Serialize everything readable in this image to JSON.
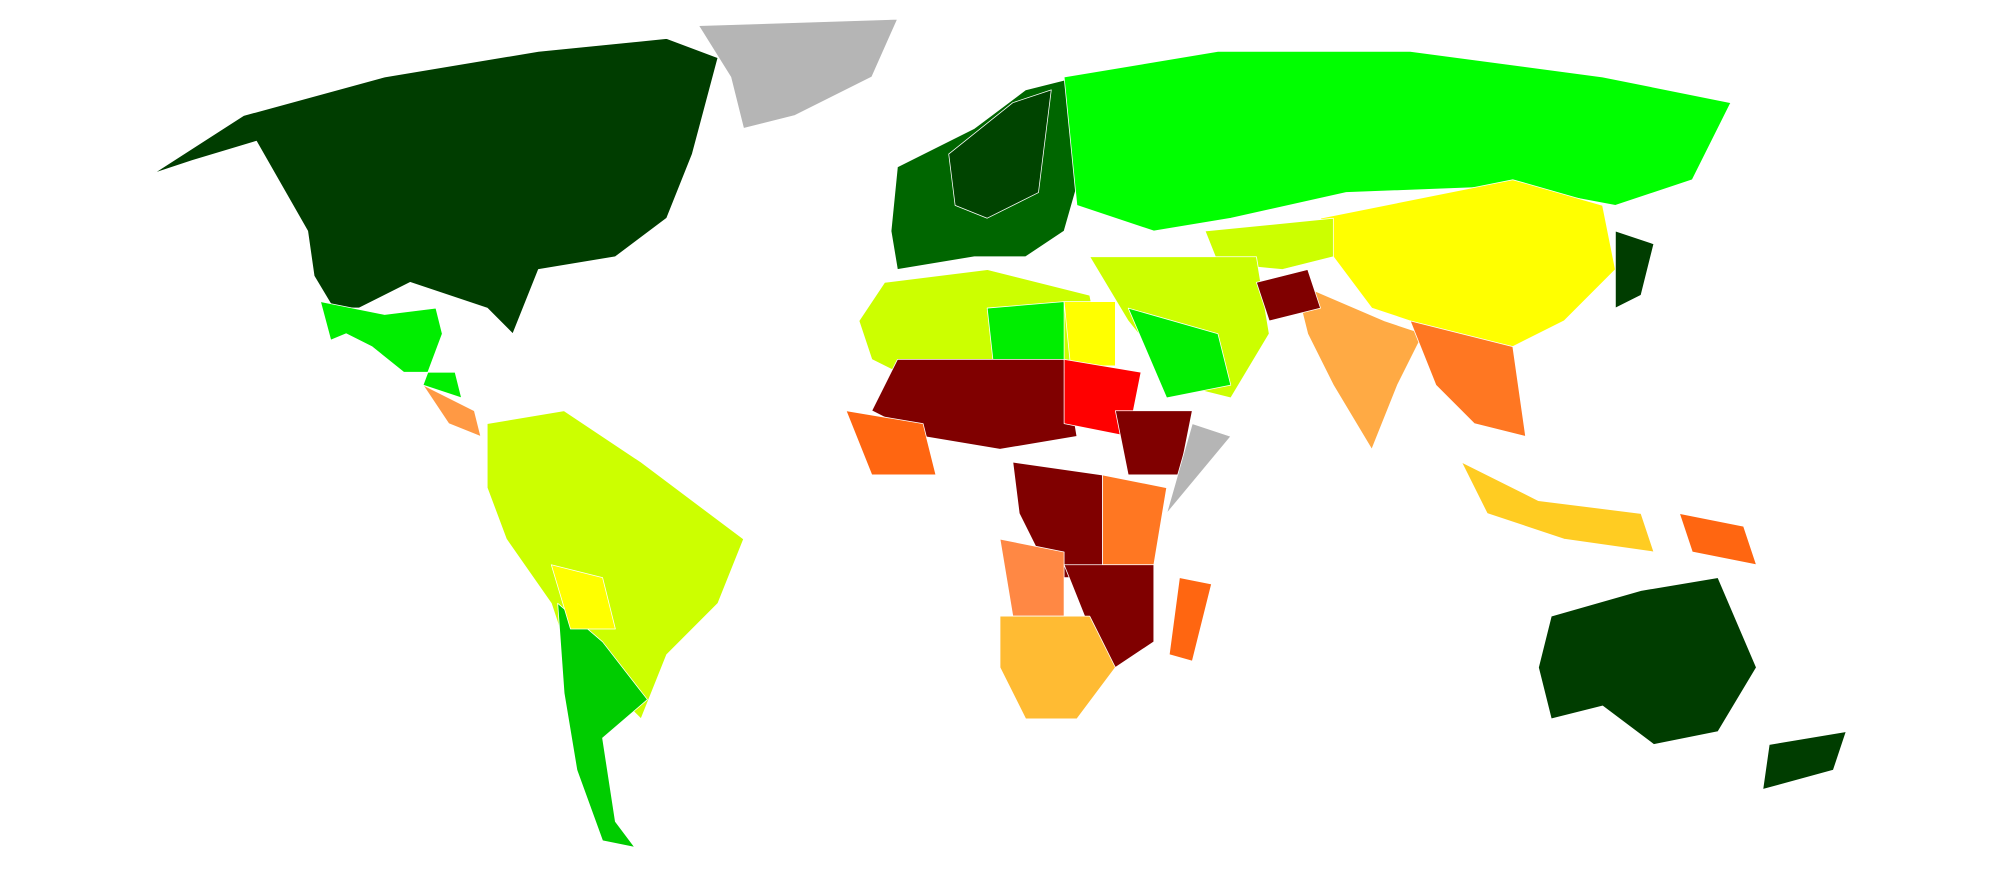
{
  "map": {
    "background": "#ffffff",
    "regions": [
      {
        "color": "#003d00"
      },
      {
        "color": "#b5b5b5"
      },
      {
        "color": "#00ee00"
      },
      {
        "color": "#ff9944"
      },
      {
        "color": "#ccff00"
      },
      {
        "color": "#00cc00"
      },
      {
        "color": "#ffff00"
      },
      {
        "color": "#006600"
      },
      {
        "color": "#004400"
      },
      {
        "color": "#00ff00"
      },
      {
        "color": "#ffff00"
      },
      {
        "color": "#ccff00"
      },
      {
        "color": "#ccff00"
      },
      {
        "color": "#00ee00"
      },
      {
        "color": "#ffaa44"
      },
      {
        "color": "#800000"
      },
      {
        "color": "#ff7722"
      },
      {
        "color": "#ffcc22"
      },
      {
        "color": "#ff6611"
      },
      {
        "color": "#003d00"
      },
      {
        "color": "#003d00"
      },
      {
        "color": "#003d00"
      },
      {
        "color": "#ccff00"
      },
      {
        "color": "#00ee00"
      },
      {
        "color": "#ffff00"
      },
      {
        "color": "#800000"
      },
      {
        "color": "#ff6611"
      },
      {
        "color": "#ff0000"
      },
      {
        "color": "#800000"
      },
      {
        "color": "#b5b5b5"
      },
      {
        "color": "#800000"
      },
      {
        "color": "#ff8844"
      },
      {
        "color": "#ff7722"
      },
      {
        "color": "#800000"
      },
      {
        "color": "#ffbb33"
      },
      {
        "color": "#ff6611"
      }
    ]
  }
}
